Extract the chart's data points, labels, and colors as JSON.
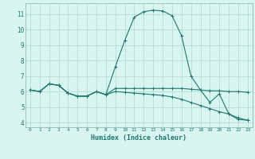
{
  "xlabel": "Humidex (Indice chaleur)",
  "bg_color": "#d8f5f0",
  "line_color": "#1a7a6e",
  "grid_color": "#b0d8d0",
  "spine_color": "#8bbdb8",
  "x_ticks": [
    0,
    1,
    2,
    3,
    4,
    5,
    6,
    7,
    8,
    9,
    10,
    11,
    12,
    13,
    14,
    15,
    16,
    17,
    18,
    19,
    20,
    21,
    22,
    23
  ],
  "y_ticks": [
    4,
    5,
    6,
    7,
    8,
    9,
    10,
    11
  ],
  "xlim": [
    -0.5,
    23.5
  ],
  "ylim": [
    3.7,
    11.7
  ],
  "series1_x": [
    0,
    1,
    2,
    3,
    4,
    5,
    6,
    7,
    8,
    9,
    10,
    11,
    12,
    13,
    14,
    15,
    16,
    17,
    18,
    19,
    20,
    21,
    22,
    23
  ],
  "series1_y": [
    6.1,
    6.0,
    6.5,
    6.4,
    5.9,
    5.7,
    5.7,
    6.0,
    5.8,
    6.2,
    6.2,
    6.2,
    6.2,
    6.2,
    6.2,
    6.2,
    6.2,
    6.15,
    6.1,
    6.05,
    6.05,
    6.0,
    6.0,
    5.95
  ],
  "series2_x": [
    0,
    1,
    2,
    3,
    4,
    5,
    6,
    7,
    8,
    9,
    10,
    11,
    12,
    13,
    14,
    15,
    16,
    17,
    18,
    19,
    20,
    21,
    22,
    23
  ],
  "series2_y": [
    6.1,
    6.0,
    6.5,
    6.4,
    5.9,
    5.7,
    5.7,
    6.0,
    5.8,
    7.6,
    9.3,
    10.8,
    11.15,
    11.25,
    11.2,
    10.9,
    9.6,
    7.0,
    6.1,
    5.3,
    5.85,
    4.55,
    4.2,
    4.15
  ],
  "series3_x": [
    0,
    1,
    2,
    3,
    4,
    5,
    6,
    7,
    8,
    9,
    10,
    11,
    12,
    13,
    14,
    15,
    16,
    17,
    18,
    19,
    20,
    21,
    22,
    23
  ],
  "series3_y": [
    6.1,
    6.0,
    6.5,
    6.4,
    5.9,
    5.7,
    5.7,
    6.0,
    5.8,
    6.0,
    5.95,
    5.9,
    5.85,
    5.8,
    5.75,
    5.65,
    5.5,
    5.3,
    5.1,
    4.9,
    4.7,
    4.55,
    4.3,
    4.15
  ]
}
